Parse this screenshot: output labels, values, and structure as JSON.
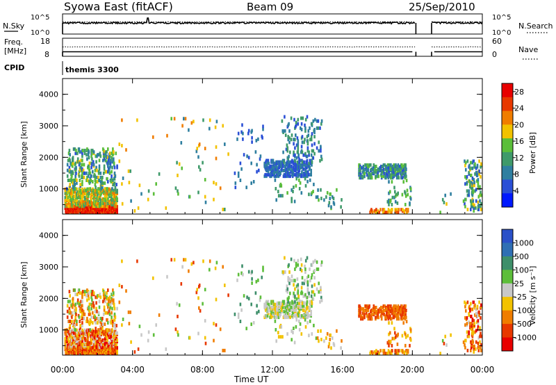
{
  "header": {
    "station": "Syowa East (fitACF)",
    "beam": "Beam 09",
    "date": "25/Sep/2010"
  },
  "panels": {
    "nsky_label": "N.Sky",
    "nsearch_label": "N.Search",
    "nsky_ticks": [
      "10^5",
      "10^0"
    ],
    "nsearch_ticks": [
      "10^5",
      "10^0"
    ],
    "freq_label_1": "Freq.",
    "freq_label_2": "[MHz]",
    "freq_ticks": [
      "18",
      "8"
    ],
    "nave_label": "Nave",
    "nave_ticks": [
      "60",
      "0"
    ],
    "cpid_label": "CPID",
    "cpid_value": "themis 3300"
  },
  "colors": {
    "power_scale": [
      "#0018ff",
      "#2a4fd6",
      "#2f7fa0",
      "#3f9a6a",
      "#5bbe3a",
      "#f2c200",
      "#f07d00",
      "#e83800",
      "#e80000"
    ],
    "velocity_scale": [
      "#2a50c8",
      "#2f6fb4",
      "#3e8f6a",
      "#5dbe3a",
      "#c8c8c8",
      "#f2c200",
      "#f07d00",
      "#e83800",
      "#e80000"
    ]
  },
  "chart_data": [
    {
      "type": "heatmap",
      "title": "Power",
      "xlabel": "",
      "ylabel": "Slant Range [km]",
      "x_ticks": [
        "00:00",
        "04:00",
        "08:00",
        "12:00",
        "16:00",
        "20:00",
        "00:00"
      ],
      "y_ticks": [
        "1000",
        "2000",
        "3000",
        "4000"
      ],
      "ylim": [
        200,
        4500
      ],
      "xlim_hours": [
        0,
        24
      ],
      "colorbar_label": "Power [dB]",
      "colorbar_ticks": [
        "28",
        "24",
        "20",
        "16",
        "12",
        "8",
        "4"
      ],
      "colorbar_range": [
        0,
        30
      ]
    },
    {
      "type": "heatmap",
      "title": "Velocity",
      "xlabel": "Time UT",
      "ylabel": "Slant Range [km]",
      "x_ticks": [
        "00:00",
        "04:00",
        "08:00",
        "12:00",
        "16:00",
        "20:00",
        "00:00"
      ],
      "y_ticks": [
        "1000",
        "2000",
        "3000",
        "4000"
      ],
      "ylim": [
        200,
        4500
      ],
      "xlim_hours": [
        0,
        24
      ],
      "colorbar_label": "Velocity [m s⁻¹]",
      "colorbar_ticks": [
        "1000",
        "500",
        "100",
        "25",
        "-25",
        "-100",
        "-500",
        "-1000"
      ],
      "colorbar_range": [
        -1000,
        1000
      ]
    }
  ]
}
